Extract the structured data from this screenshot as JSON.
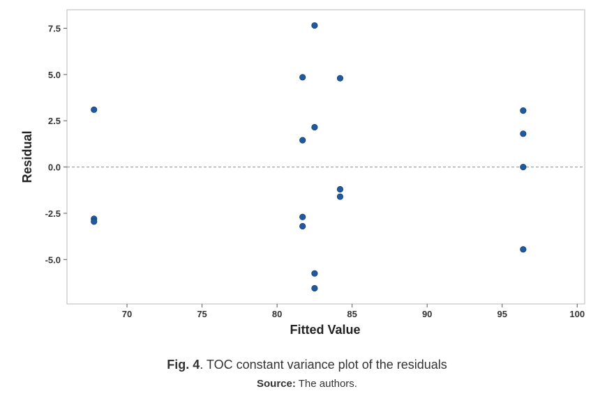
{
  "chart_data": {
    "type": "scatter",
    "title": "",
    "xlabel": "Fitted Value",
    "ylabel": "Residual",
    "xlim": [
      66,
      100.5
    ],
    "ylim": [
      -7.4,
      8.5
    ],
    "xticks": [
      70,
      75,
      80,
      85,
      90,
      95,
      100
    ],
    "xtick_labels": [
      "70",
      "75",
      "80",
      "85",
      "90",
      "95",
      "100"
    ],
    "yticks": [
      -5.0,
      -2.5,
      0.0,
      2.5,
      5.0,
      7.5
    ],
    "ytick_labels": [
      "-5.0",
      "-2.5",
      "0.0",
      "2.5",
      "5.0",
      "7.5"
    ],
    "reference_line": {
      "y": 0,
      "style": "dashed"
    },
    "grid": false,
    "marker_color": "#1f5aa0",
    "series": [
      {
        "points": [
          {
            "x": 67.8,
            "y": 3.1
          },
          {
            "x": 67.8,
            "y": -2.8
          },
          {
            "x": 67.8,
            "y": -2.95
          },
          {
            "x": 81.7,
            "y": 4.85
          },
          {
            "x": 81.7,
            "y": 1.45
          },
          {
            "x": 81.7,
            "y": -2.7
          },
          {
            "x": 81.7,
            "y": -3.2
          },
          {
            "x": 82.5,
            "y": 7.65
          },
          {
            "x": 82.5,
            "y": 2.15
          },
          {
            "x": 82.5,
            "y": -5.75
          },
          {
            "x": 82.5,
            "y": -6.55
          },
          {
            "x": 84.2,
            "y": 4.8
          },
          {
            "x": 84.2,
            "y": -1.2
          },
          {
            "x": 84.2,
            "y": -1.6
          },
          {
            "x": 96.4,
            "y": 3.05
          },
          {
            "x": 96.4,
            "y": 1.8
          },
          {
            "x": 96.4,
            "y": 0.0
          },
          {
            "x": 96.4,
            "y": -4.45
          }
        ]
      }
    ]
  },
  "caption": {
    "fig_label": "Fig. 4",
    "text": ". TOC constant variance plot of the residuals",
    "source_label": "Source:",
    "source_text": " The authors."
  }
}
